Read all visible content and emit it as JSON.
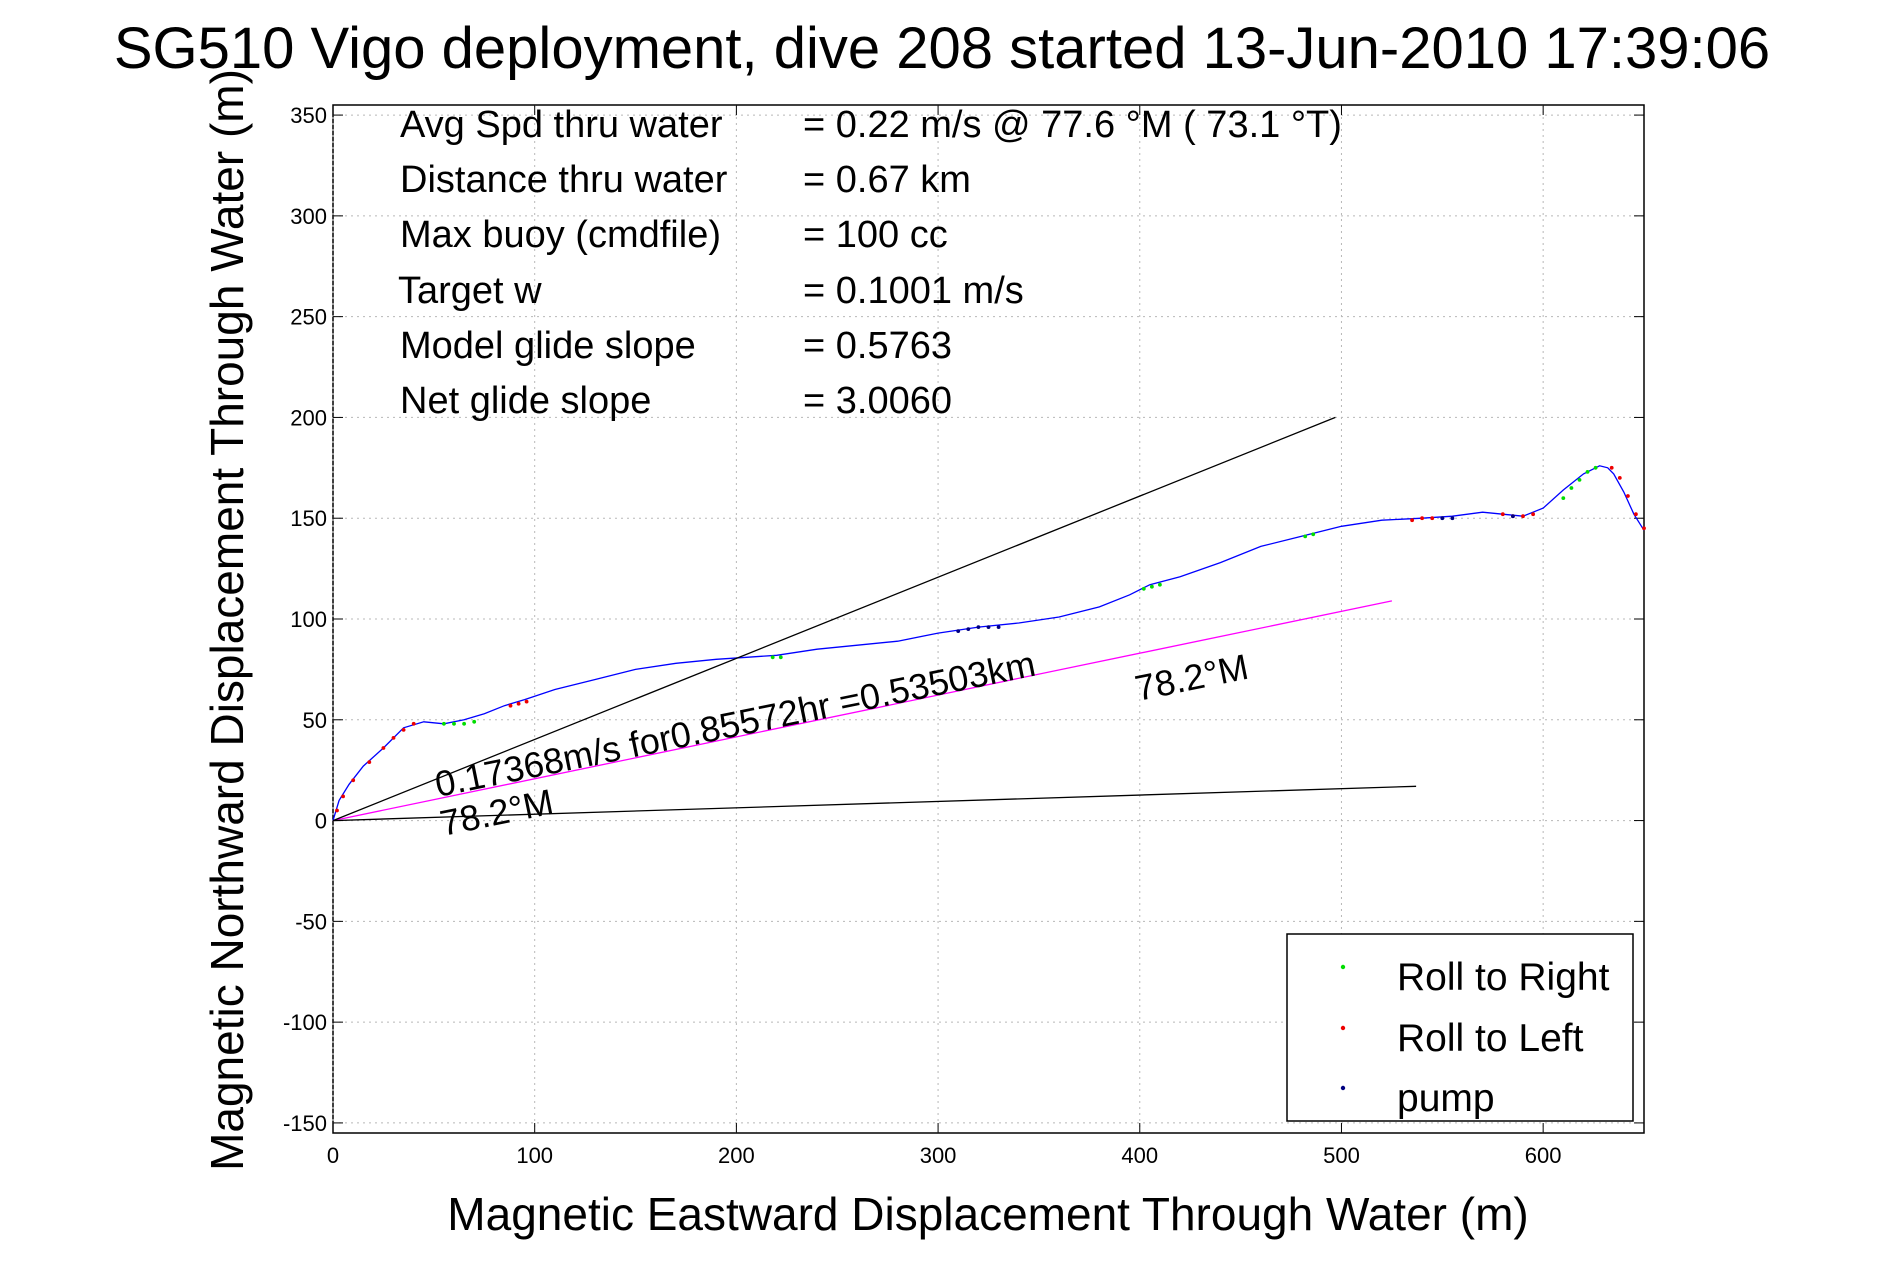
{
  "figure": {
    "title": "SG510 Vigo deployment, dive 208 started 13-Jun-2010 17:39:06",
    "stats": [
      {
        "label": "Avg Spd thru water",
        "value": "=  0.22 m/s @  77.6 °M ( 73.1 °T)"
      },
      {
        "label": "Distance thru water",
        "value": "=  0.67 km"
      },
      {
        "label": "Max buoy (cmdfile)",
        "value": "= 100 cc"
      },
      {
        "label": "Target w",
        "value": "= 0.1001 m/s"
      },
      {
        "label": "Model glide slope",
        "value": "= 0.5763"
      },
      {
        "label": "Net glide slope",
        "value": "= 3.0060"
      }
    ],
    "annotations": {
      "current_line": "0.17368m/s for0.85572hr =0.53503km",
      "current_heading": "78.2°M",
      "lower_heading": "78.2°M"
    },
    "legend_items": [
      {
        "label": "Roll to Right",
        "color": "#00dd00"
      },
      {
        "label": "Roll to Left",
        "color": "#ee0000"
      },
      {
        "label": "pump",
        "color": "#000080"
      }
    ]
  },
  "chart_data": {
    "type": "line",
    "title": "SG510 Vigo deployment, dive 208 started 13-Jun-2010 17:39:06",
    "xlabel": "Magnetic Eastward Displacement Through Water (m)",
    "ylabel": "Magnetic Northward Displacement Through Water (m)",
    "xlim": [
      0,
      650
    ],
    "ylim": [
      -155,
      355
    ],
    "xticks": [
      0,
      100,
      200,
      300,
      400,
      500,
      600
    ],
    "yticks": [
      -150,
      -100,
      -50,
      0,
      50,
      100,
      150,
      200,
      250,
      300,
      350
    ],
    "grid": true,
    "legend_position": "bottom-right",
    "series": [
      {
        "color": "#0000ff",
        "x": [
          0,
          3,
          8,
          15,
          25,
          35,
          45,
          55,
          65,
          75,
          85,
          95,
          110,
          130,
          150,
          170,
          190,
          205,
          220,
          240,
          260,
          280,
          300,
          320,
          340,
          360,
          380,
          395,
          405,
          420,
          440,
          460,
          480,
          500,
          520,
          540,
          555,
          570,
          580,
          590,
          600,
          610,
          620,
          628,
          632,
          635,
          640,
          645,
          650
        ],
        "y": [
          0,
          10,
          18,
          27,
          36,
          46,
          49,
          48,
          50,
          53,
          57,
          60,
          65,
          70,
          75,
          78,
          80,
          81,
          82,
          85,
          87,
          89,
          93,
          96,
          98,
          101,
          106,
          112,
          117,
          121,
          128,
          136,
          141,
          146,
          149,
          150,
          151,
          153,
          152,
          151,
          155,
          164,
          172,
          176,
          175,
          172,
          163,
          152,
          144
        ]
      },
      {
        "color": "#ff00ff",
        "x": [
          0,
          525
        ],
        "y": [
          0,
          109
        ]
      },
      {
        "color": "#000000",
        "x": [
          0,
          497
        ],
        "y": [
          0,
          200
        ]
      },
      {
        "color": "#000000",
        "x": [
          0,
          537
        ],
        "y": [
          0,
          17
        ]
      }
    ],
    "markers": [
      {
        "name": "Roll to Right",
        "color": "#00dd00",
        "x": [
          55,
          60,
          65,
          70,
          218,
          222,
          402,
          406,
          410,
          482,
          486,
          610,
          614,
          618,
          622,
          626
        ],
        "y": [
          48,
          48,
          48,
          49,
          81,
          81,
          115,
          116,
          117,
          141,
          142,
          160,
          165,
          169,
          173,
          175
        ]
      },
      {
        "name": "Roll to Left",
        "color": "#ee0000",
        "x": [
          2,
          5,
          10,
          18,
          25,
          30,
          35,
          40,
          88,
          92,
          96,
          535,
          540,
          545,
          580,
          585,
          590,
          595,
          634,
          638,
          642,
          646,
          650
        ],
        "y": [
          5,
          12,
          20,
          29,
          36,
          41,
          45,
          48,
          57,
          58,
          59,
          149,
          150,
          150,
          152,
          151,
          151,
          152,
          175,
          170,
          161,
          152,
          145
        ]
      },
      {
        "name": "pump",
        "color": "#000080",
        "x": [
          310,
          315,
          320,
          325,
          330,
          550,
          555,
          585
        ],
        "y": [
          94,
          95,
          96,
          96,
          96,
          150,
          150,
          151
        ]
      }
    ]
  }
}
